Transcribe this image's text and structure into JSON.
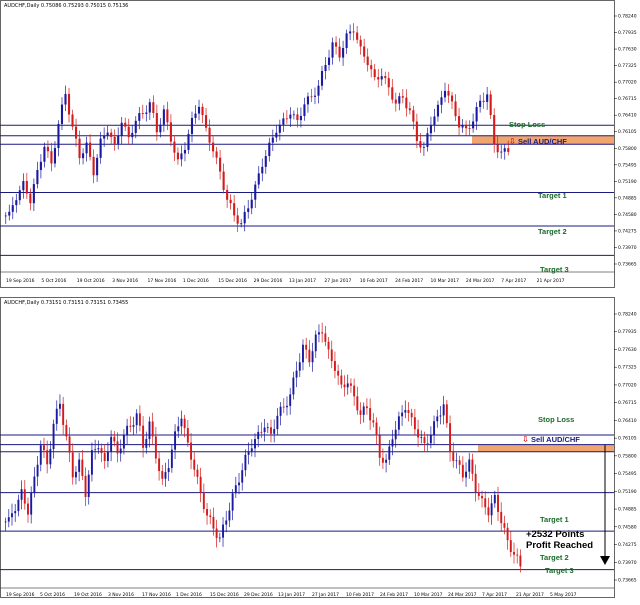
{
  "colors": {
    "bull": "#1a1aa0",
    "bear": "#d41a1a",
    "level": "#1a1a80",
    "zone": "#f0a56e",
    "levelText": "#1b6b2a",
    "sellText": "#1b1b80"
  },
  "panels": [
    {
      "header": "AUDCHF,Daily  0.75086 0.75293 0.75015 0.75136",
      "xticks": [
        "19 Sep 2016",
        "5 Oct 2016",
        "19 Oct 2016",
        "3 Nov 2016",
        "17 Nov 2016",
        "1 Dec 2016",
        "15 Dec 2016",
        "29 Dec 2016",
        "13 Jan 2017",
        "27 Jan 2017",
        "10 Feb 2017",
        "24 Feb 2017",
        "10 Mar 2017",
        "24 Mar 2017",
        "7 Apr 2017",
        "21 Apr 2017"
      ],
      "yticks": [
        "0.78240",
        "0.77935",
        "0.77630",
        "0.77325",
        "0.77020",
        "0.76715",
        "0.76410",
        "0.76105",
        "0.75800",
        "0.75495",
        "0.75190",
        "0.74885",
        "0.74580",
        "0.74275",
        "0.73970",
        "0.73665"
      ],
      "labels": {
        "stop_loss": "Stop Loss",
        "sell": "Sell AUD/CHF",
        "target1": "Target 1",
        "target2": "Target 2",
        "target3": "Target 3"
      }
    },
    {
      "header": "AUDCHF,Daily  0.73151 0.73151 0.73151 0.73455",
      "xticks": [
        "19 Sep 2016",
        "5 Oct 2016",
        "19 Oct 2016",
        "3 Nov 2016",
        "17 Nov 2016",
        "1 Dec 2016",
        "15 Dec 2016",
        "29 Dec 2016",
        "13 Jan 2017",
        "27 Jan 2017",
        "10 Feb 2017",
        "24 Feb 2017",
        "10 Mar 2017",
        "24 Mar 2017",
        "7 Apr 2017",
        "21 Apr 2017",
        "5 May 2017"
      ],
      "yticks": [
        "0.78240",
        "0.77935",
        "0.77630",
        "0.77325",
        "0.77020",
        "0.76715",
        "0.76410",
        "0.76105",
        "0.75800",
        "0.75495",
        "0.75190",
        "0.74885",
        "0.74580",
        "0.74275",
        "0.73970",
        "0.73665"
      ],
      "labels": {
        "stop_loss": "Stop Loss",
        "sell": "Sell AUD/CHF",
        "target1": "Target 1",
        "target2": "Target 2",
        "target3": "Target 3"
      },
      "profit_line1": "+2532 Points",
      "profit_line2": "Profit Reached"
    }
  ],
  "chart_data": [
    {
      "type": "candlestick",
      "symbol": "AUDCHF",
      "timeframe": "Daily",
      "levels": {
        "stop_loss": 0.761,
        "sell_zone": [
          0.7565,
          0.7585
        ],
        "target1": 0.745,
        "target2": 0.737,
        "target3": 0.73
      },
      "series_path": [
        0.7395,
        0.744,
        0.747,
        0.743,
        0.75,
        0.756,
        0.752,
        0.761,
        0.769,
        0.76,
        0.754,
        0.756,
        0.75,
        0.757,
        0.76,
        0.756,
        0.762,
        0.758,
        0.762,
        0.764,
        0.766,
        0.76,
        0.764,
        0.758,
        0.752,
        0.756,
        0.762,
        0.766,
        0.76,
        0.755,
        0.75,
        0.743,
        0.74,
        0.737,
        0.742,
        0.746,
        0.752,
        0.756,
        0.76,
        0.762,
        0.764,
        0.762,
        0.766,
        0.768,
        0.77,
        0.776,
        0.78,
        0.778,
        0.782,
        0.784,
        0.779,
        0.776,
        0.772,
        0.773,
        0.77,
        0.766,
        0.768,
        0.764,
        0.758,
        0.755,
        0.762,
        0.765,
        0.77,
        0.766,
        0.761,
        0.76,
        0.762,
        0.767,
        0.768,
        0.757,
        0.754,
        0.7555
      ]
    },
    {
      "type": "candlestick",
      "symbol": "AUDCHF",
      "timeframe": "Daily",
      "levels": {
        "stop_loss": 0.762,
        "sell_zone": [
          0.7585,
          0.76
        ],
        "target1": 0.75,
        "target2": 0.742,
        "target3": 0.734
      },
      "series_path": [
        0.744,
        0.747,
        0.75,
        0.746,
        0.753,
        0.76,
        0.756,
        0.764,
        0.769,
        0.761,
        0.754,
        0.756,
        0.75,
        0.758,
        0.76,
        0.756,
        0.762,
        0.758,
        0.762,
        0.764,
        0.766,
        0.76,
        0.764,
        0.758,
        0.752,
        0.756,
        0.762,
        0.766,
        0.76,
        0.755,
        0.75,
        0.745,
        0.743,
        0.74,
        0.745,
        0.749,
        0.753,
        0.757,
        0.76,
        0.762,
        0.764,
        0.762,
        0.766,
        0.768,
        0.77,
        0.776,
        0.78,
        0.778,
        0.782,
        0.784,
        0.779,
        0.776,
        0.772,
        0.773,
        0.77,
        0.766,
        0.768,
        0.764,
        0.758,
        0.756,
        0.762,
        0.765,
        0.768,
        0.765,
        0.762,
        0.76,
        0.762,
        0.766,
        0.768,
        0.759,
        0.756,
        0.754,
        0.756,
        0.751,
        0.748,
        0.746,
        0.749,
        0.744,
        0.74,
        0.737,
        0.735
      ]
    }
  ]
}
